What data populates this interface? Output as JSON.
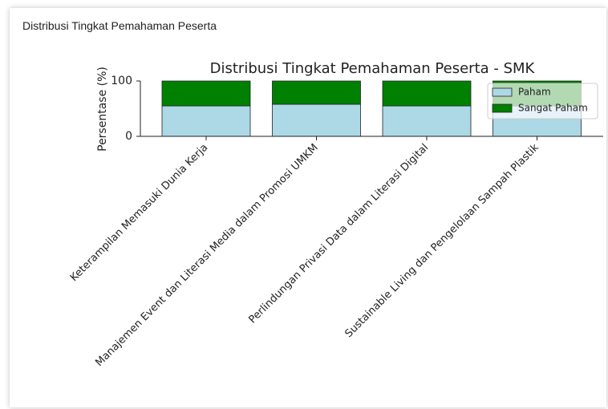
{
  "heading": "Distribusi Tingkat Pemahaman Peserta",
  "chart_data": {
    "type": "stacked_bar",
    "title": "Distribusi Tingkat Pemahaman Peserta - SMK",
    "y_label": "Persentase (%)",
    "categories": [
      "Keterampilan Memasuki Dunia Kerja",
      "Manajemen Event dan Literasi Media dalam Promosi UMKM",
      "Perlindungan Privasi Data dalam Literasi Digital",
      "Sustainable Living dan Pengelolaan Sampah Plastik"
    ],
    "series": [
      {
        "name": "Paham",
        "color": "#add8e6",
        "values": [
          55,
          58,
          55,
          55
        ]
      },
      {
        "name": "Sangat Paham",
        "color": "#008000",
        "values": [
          45,
          42,
          45,
          45
        ]
      }
    ],
    "ylim": [
      0,
      100
    ],
    "yticks": [
      0,
      100
    ],
    "legend": "upper right"
  }
}
